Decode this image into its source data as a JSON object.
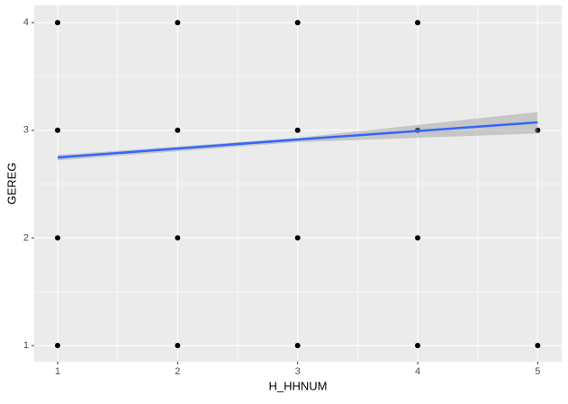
{
  "chart_data": {
    "type": "scatter",
    "x_label": "H_HHNUM",
    "y_label": "GEREG",
    "series": [
      {
        "name": "points",
        "color": "#000000",
        "x": [
          1,
          1,
          1,
          1,
          2,
          2,
          2,
          2,
          3,
          3,
          3,
          3,
          4,
          4,
          4,
          4,
          5,
          5
        ],
        "values": [
          1,
          2,
          3,
          4,
          1,
          2,
          3,
          4,
          1,
          2,
          3,
          4,
          1,
          2,
          3,
          4,
          1,
          3
        ]
      },
      {
        "name": "smooth",
        "color": "#3366FF",
        "band_color": "#999999",
        "x": [
          1,
          3,
          5
        ],
        "values": [
          2.747,
          2.914,
          3.073
        ],
        "lower": [
          2.72,
          2.89,
          2.97
        ],
        "upper": [
          2.77,
          2.93,
          3.17
        ]
      }
    ],
    "xlim": [
      0.805,
      5.2
    ],
    "ylim": [
      0.85,
      4.16
    ],
    "xticks": [
      1,
      2,
      3,
      4,
      5
    ],
    "yticks": [
      1,
      2,
      3,
      4
    ],
    "grid": true
  }
}
